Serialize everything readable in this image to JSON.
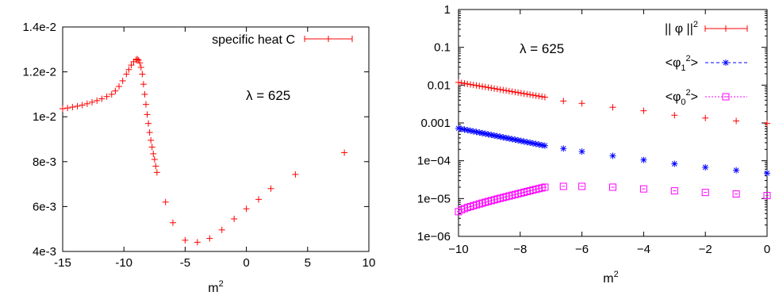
{
  "chart_data": [
    {
      "type": "scatter",
      "xlabel_base": "m",
      "xlabel_sup": "2",
      "xlim": [
        -15,
        10
      ],
      "ylim": [
        0.004,
        0.014
      ],
      "xticks": [
        -15,
        -10,
        -5,
        0,
        5,
        10
      ],
      "xtick_labels": [
        "-15",
        "-10",
        "-5",
        "0",
        "5",
        "10"
      ],
      "yticks": [
        0.004,
        0.006,
        0.008,
        0.01,
        0.012,
        0.014
      ],
      "ytick_labels": [
        "4e-3",
        "6e-3",
        "8e-3",
        "1e-2",
        "1.2e-2",
        "1.4e-2"
      ],
      "annotation": "λ = 625",
      "legend_position": "top-right",
      "series": [
        {
          "name": "specific heat  C",
          "color": "#ff0000",
          "marker": "plus-errorbar",
          "points": [
            [
              -15.0,
              0.01036
            ],
            [
              -14.6,
              0.01039
            ],
            [
              -14.2,
              0.01043
            ],
            [
              -13.8,
              0.01047
            ],
            [
              -13.4,
              0.01052
            ],
            [
              -13.0,
              0.01058
            ],
            [
              -12.6,
              0.01065
            ],
            [
              -12.2,
              0.01072
            ],
            [
              -11.8,
              0.0108
            ],
            [
              -11.4,
              0.0109
            ],
            [
              -11.0,
              0.011
            ],
            [
              -10.7,
              0.01115
            ],
            [
              -10.4,
              0.01135
            ],
            [
              -10.1,
              0.0116
            ],
            [
              -9.8,
              0.0119
            ],
            [
              -9.6,
              0.0121
            ],
            [
              -9.4,
              0.0123
            ],
            [
              -9.2,
              0.01245
            ],
            [
              -9.0,
              0.01254
            ],
            [
              -8.9,
              0.01257
            ],
            [
              -8.8,
              0.01252
            ],
            [
              -8.7,
              0.0124
            ],
            [
              -8.6,
              0.0122
            ],
            [
              -8.5,
              0.0119
            ],
            [
              -8.4,
              0.01145
            ],
            [
              -8.3,
              0.011
            ],
            [
              -8.2,
              0.01055
            ],
            [
              -8.1,
              0.0101
            ],
            [
              -8.0,
              0.0097
            ],
            [
              -7.9,
              0.0093
            ],
            [
              -7.8,
              0.00895
            ],
            [
              -7.7,
              0.00865
            ],
            [
              -7.6,
              0.00835
            ],
            [
              -7.5,
              0.0081
            ],
            [
              -7.4,
              0.0078
            ],
            [
              -7.3,
              0.00752
            ],
            [
              -6.6,
              0.0062
            ],
            [
              -6.0,
              0.00528
            ],
            [
              -5.0,
              0.0045
            ],
            [
              -4.0,
              0.00441
            ],
            [
              -3.0,
              0.00458
            ],
            [
              -2.0,
              0.00496
            ],
            [
              -1.0,
              0.00545
            ],
            [
              0.0,
              0.0059
            ],
            [
              1.0,
              0.00632
            ],
            [
              2.0,
              0.0068
            ],
            [
              4.0,
              0.00743
            ],
            [
              8.0,
              0.0084
            ]
          ]
        }
      ]
    },
    {
      "type": "scatter",
      "xlabel_base": "m",
      "xlabel_sup": "2",
      "xlim": [
        -10,
        0
      ],
      "ylim": [
        1e-06,
        1
      ],
      "yscale": "log",
      "xticks": [
        -10,
        -8,
        -6,
        -4,
        -2,
        0
      ],
      "xtick_labels": [
        "−10",
        "−8",
        "−6",
        "−4",
        "−2",
        "0"
      ],
      "yticks": [
        1e-06,
        1e-05,
        0.0001,
        0.001,
        0.01,
        0.1,
        1
      ],
      "ytick_labels": [
        "1e−06",
        "1e−05",
        "1e−04",
        "0.001",
        "0.01",
        "0.1",
        "1"
      ],
      "annotation": "λ = 625",
      "legend_position": "top-right",
      "series": [
        {
          "name": "|| φ̄ ||²",
          "legend_label": [
            "|| ",
            "φ",
            " ||",
            "2"
          ],
          "color": "#ff0000",
          "marker": "plus",
          "dense_x": [
            -10,
            -7.2
          ],
          "dense_y": [
            0.0118,
            0.0048
          ],
          "dense_n": 30,
          "points": [
            [
              -6.6,
              0.0038
            ],
            [
              -6.0,
              0.0033
            ],
            [
              -5.0,
              0.0026
            ],
            [
              -4.0,
              0.0021
            ],
            [
              -3.0,
              0.0016
            ],
            [
              -2.0,
              0.00135
            ],
            [
              -1.0,
              0.00113
            ],
            [
              0.0,
              0.00097
            ]
          ]
        },
        {
          "name": "<φ1²>",
          "legend_label": [
            "<φ",
            "1",
            "2",
            ">"
          ],
          "color": "#0000ff",
          "marker": "star",
          "dense_x": [
            -10,
            -7.2
          ],
          "dense_y": [
            0.00072,
            0.00025
          ],
          "dense_n": 30,
          "points": [
            [
              -6.6,
              0.00021
            ],
            [
              -6.0,
              0.000175
            ],
            [
              -5.0,
              0.000135
            ],
            [
              -4.0,
              0.000105
            ],
            [
              -3.0,
              8.3e-05
            ],
            [
              -2.0,
              6.7e-05
            ],
            [
              -1.0,
              5.6e-05
            ],
            [
              0.0,
              4.7e-05
            ]
          ]
        },
        {
          "name": "<φ0²>",
          "legend_label": [
            "<φ",
            "0",
            "2",
            ">"
          ],
          "color": "#ff00ff",
          "marker": "square",
          "dense_x": [
            -10,
            -7.2
          ],
          "dense_y": [
            4.5e-06,
            2e-05
          ],
          "dense_n": 30,
          "points": [
            [
              -6.6,
              2.1e-05
            ],
            [
              -6.0,
              2.1e-05
            ],
            [
              -5.0,
              2e-05
            ],
            [
              -4.0,
              1.8e-05
            ],
            [
              -3.0,
              1.6e-05
            ],
            [
              -2.0,
              1.45e-05
            ],
            [
              -1.0,
              1.32e-05
            ],
            [
              0.0,
              1.2e-05
            ]
          ]
        }
      ]
    }
  ]
}
